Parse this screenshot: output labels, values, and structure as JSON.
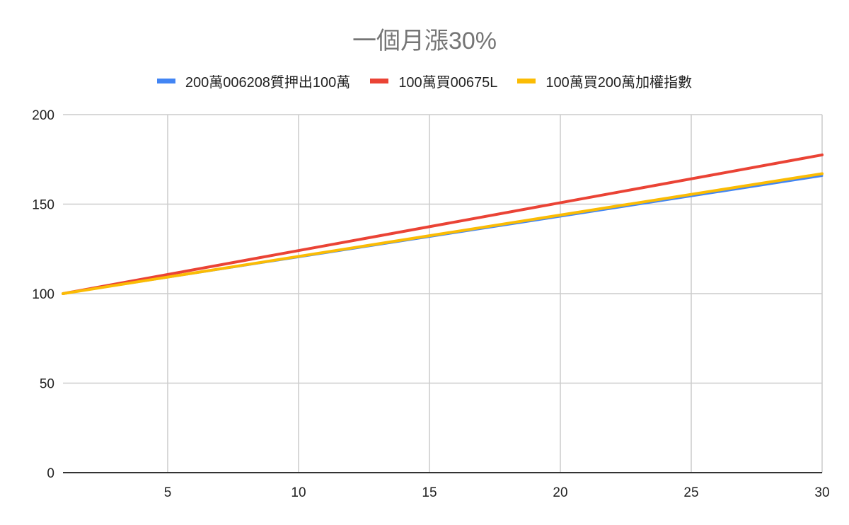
{
  "chart_data": {
    "type": "line",
    "title": "一個月漲30%",
    "xlabel": "",
    "ylabel": "",
    "xlim": [
      1,
      30
    ],
    "ylim": [
      0,
      200
    ],
    "x_ticks": [
      5,
      10,
      15,
      20,
      25,
      30
    ],
    "y_ticks": [
      0,
      50,
      100,
      150,
      200
    ],
    "grid": true,
    "legend_position": "top",
    "x": [
      1,
      30
    ],
    "series": [
      {
        "name": "200萬006208質押出100萬",
        "color": "#4285F4",
        "values": [
          100,
          165.8
        ]
      },
      {
        "name": "100萬買00675L",
        "color": "#EA4335",
        "values": [
          100,
          177.5
        ]
      },
      {
        "name": "100萬買200萬加權指數",
        "color": "#FBBC04",
        "values": [
          100,
          167
        ]
      }
    ]
  }
}
